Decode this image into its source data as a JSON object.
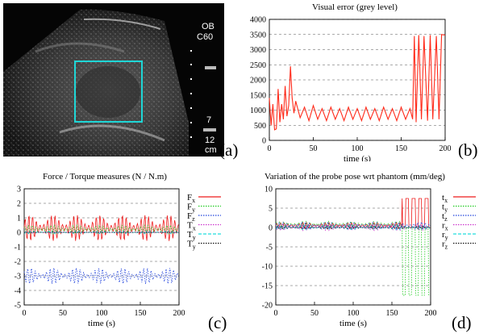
{
  "panel_labels": {
    "a": "(a)",
    "b": "(b)",
    "c": "(c)",
    "d": "(d)"
  },
  "ultrasound": {
    "line1": "OB",
    "line2": "C60",
    "depth_value": "7",
    "depth_max": "12",
    "depth_unit": "cm",
    "roi_color": "#1fd6d6"
  },
  "chart_data": [
    {
      "id": "visual-error",
      "type": "line",
      "title": "Visual error (grey level)",
      "xlabel": "time (s)",
      "ylabel": "",
      "xlim": [
        0,
        200
      ],
      "ylim": [
        0,
        4000
      ],
      "x_ticks": [
        0,
        50,
        100,
        150,
        200
      ],
      "y_ticks": [
        0,
        500,
        1000,
        1500,
        2000,
        2500,
        3000,
        3500,
        4000
      ],
      "grid": "horizontal dashed",
      "series": [
        {
          "color": "#ff2a1a",
          "style": "solid",
          "x": [
            0,
            2,
            4,
            6,
            8,
            10,
            12,
            14,
            16,
            18,
            20,
            22,
            24,
            26,
            28,
            30,
            35,
            40,
            45,
            50,
            55,
            60,
            65,
            70,
            75,
            80,
            85,
            90,
            95,
            100,
            105,
            110,
            115,
            120,
            125,
            130,
            135,
            140,
            145,
            150,
            155,
            160,
            163,
            165,
            167,
            170,
            173,
            176,
            180,
            183,
            186,
            190,
            193,
            196,
            200
          ],
          "y": [
            1400,
            500,
            1200,
            350,
            380,
            1700,
            600,
            1200,
            700,
            1800,
            800,
            1150,
            2450,
            1400,
            900,
            1300,
            750,
            1100,
            650,
            1150,
            700,
            1050,
            650,
            1100,
            700,
            1050,
            650,
            1100,
            700,
            1050,
            650,
            1100,
            700,
            1050,
            650,
            1100,
            700,
            1050,
            650,
            1100,
            700,
            1050,
            700,
            3450,
            600,
            3480,
            700,
            3450,
            650,
            3480,
            700,
            3450,
            700,
            3500,
            3480
          ]
        }
      ]
    },
    {
      "id": "force-torque",
      "type": "line",
      "title": "Force / Torque measures (N / N.m)",
      "xlabel": "time (s)",
      "ylabel": "",
      "xlim": [
        0,
        200
      ],
      "ylim": [
        -5,
        3
      ],
      "x_ticks": [
        0,
        50,
        100,
        150,
        200
      ],
      "y_ticks": [
        -5,
        -4,
        -3,
        -2,
        -1,
        0,
        1,
        2,
        3
      ],
      "grid": "horizontal dashed",
      "legend": "right",
      "series": [
        {
          "name": "F",
          "sub": "x",
          "color": "#ee1c1c",
          "style": "solid",
          "center": 0.3,
          "amp": 0.9
        },
        {
          "name": "F",
          "sub": "y",
          "color": "#22cc22",
          "style": "dotted",
          "center": 0.2,
          "amp": 0.3
        },
        {
          "name": "F",
          "sub": "z",
          "color": "#2244dd",
          "style": "dotted",
          "center": -3.0,
          "amp": 0.55
        },
        {
          "name": "T",
          "sub": "x",
          "color": "#cc33cc",
          "style": "dotted",
          "center": 0.0,
          "amp": 0.05
        },
        {
          "name": "T",
          "sub": "y",
          "color": "#22dddd",
          "style": "dashed",
          "center": 0.0,
          "amp": 0.1
        },
        {
          "name": "T",
          "sub": "y",
          "color": "#111111",
          "style": "dotted",
          "center": 0.0,
          "amp": 0.03
        }
      ]
    },
    {
      "id": "probe-pose",
      "type": "line",
      "title": "Variation of the probe pose wrt phantom (mm/deg)",
      "xlabel": "time (s)",
      "ylabel": "",
      "xlim": [
        0,
        200
      ],
      "ylim": [
        -20,
        10
      ],
      "x_ticks": [
        0,
        50,
        100,
        150,
        200
      ],
      "y_ticks": [
        -20,
        -15,
        -10,
        -5,
        0,
        5,
        10
      ],
      "grid": "horizontal dashed",
      "legend": "right",
      "series": [
        {
          "name": "t",
          "sub": "x",
          "color": "#ee1c1c",
          "style": "solid",
          "center": 0.5,
          "amp": 0.8,
          "late_peak": 7.5
        },
        {
          "name": "t",
          "sub": "y",
          "color": "#22cc22",
          "style": "dotted",
          "center": 0.8,
          "amp": 0.8,
          "late_trough": -17.5
        },
        {
          "name": "t",
          "sub": "z",
          "color": "#2244dd",
          "style": "dotted",
          "center": 0.5,
          "amp": 0.9
        },
        {
          "name": "r",
          "sub": "x",
          "color": "#cc33cc",
          "style": "dotted",
          "center": 0.0,
          "amp": 0.8
        },
        {
          "name": "r",
          "sub": "y",
          "color": "#22dddd",
          "style": "dashed",
          "center": 0.0,
          "amp": 0.6
        },
        {
          "name": "r",
          "sub": "z",
          "color": "#111111",
          "style": "dotted",
          "center": 0.0,
          "amp": 0.4
        }
      ]
    }
  ]
}
